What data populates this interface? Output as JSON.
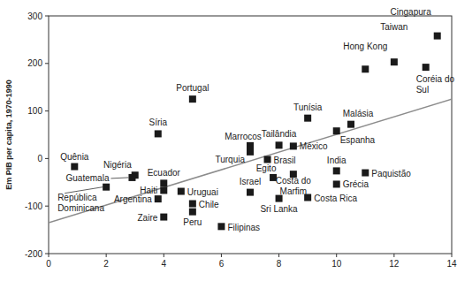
{
  "chart_data": {
    "type": "scatter",
    "y_label": "Em PIB per capita, 1970-1990",
    "xlim": [
      0,
      14
    ],
    "ylim": [
      -200,
      300
    ],
    "xticks": [
      0,
      2,
      4,
      6,
      8,
      10,
      12,
      14
    ],
    "yticks": [
      -200,
      -100,
      0,
      100,
      200,
      300
    ],
    "grid": false,
    "series": [
      {
        "type": "scatter",
        "marker": "square",
        "color": "#1a1a1a",
        "labels": [
          "Cingapura",
          "Taiwan",
          "Hong Kong",
          "Coréia do Sul",
          "Portugal",
          "Síria",
          "Tunísia",
          "Malásia",
          "Espanha",
          "Marrocos",
          "Turquia",
          "Tailândia",
          "México",
          "Brasil",
          "Quênia",
          "Nigéria",
          "Guatemala",
          "República Dominicana",
          "Ecuador",
          "Haiti",
          "Argentina",
          "Uruguai",
          "Chile",
          "Zaire",
          "Peru",
          "Filipinas",
          "Israel",
          "Egito",
          "Costa do Marfim",
          "Sri Lanka",
          "Costa Rica",
          "India",
          "Paquistão",
          "Grécia"
        ],
        "x": [
          13.5,
          12.0,
          11.0,
          13.1,
          5.0,
          3.8,
          9.0,
          10.5,
          10.0,
          7.0,
          7.0,
          8.0,
          8.5,
          7.6,
          0.9,
          3.0,
          2.9,
          2.0,
          4.0,
          4.0,
          3.8,
          4.6,
          5.0,
          4.0,
          5.0,
          6.0,
          7.0,
          7.8,
          8.5,
          8.0,
          9.0,
          10.0,
          11.0,
          10.0
        ],
        "values": [
          258,
          203,
          188,
          192,
          125,
          52,
          85,
          72,
          58,
          27,
          14,
          28,
          26,
          -2,
          -17,
          -35,
          -40,
          -60,
          -52,
          -67,
          -85,
          -69,
          -95,
          -123,
          -112,
          -143,
          -71,
          -40,
          -33,
          -84,
          -82,
          -26,
          -30,
          -54
        ]
      },
      {
        "type": "line",
        "color": "#8c8c8c",
        "line_style": "solid",
        "x": [
          0,
          14
        ],
        "values": [
          -135,
          125
        ]
      }
    ]
  }
}
